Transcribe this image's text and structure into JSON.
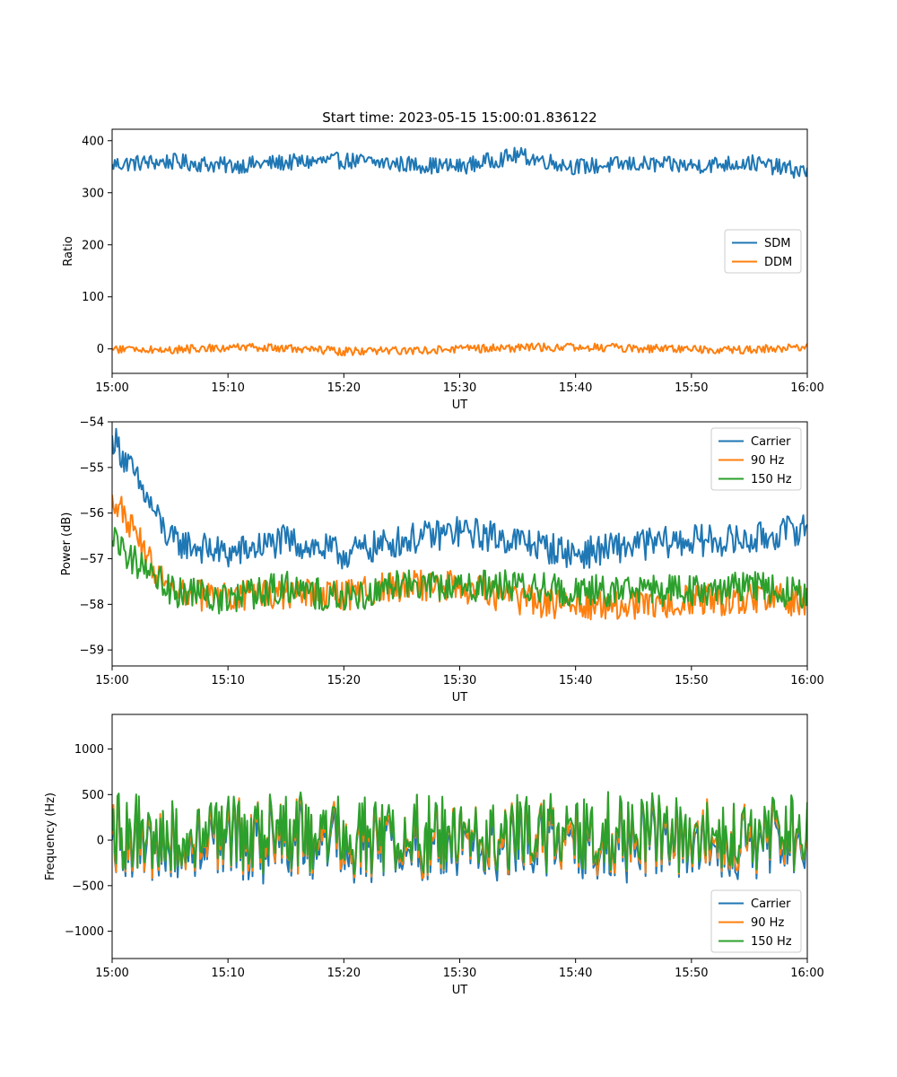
{
  "figure": {
    "title": "Start time: 2023-05-15 15:00:01.836122"
  },
  "chart_data": [
    {
      "type": "line",
      "title": "Start time: 2023-05-15 15:00:01.836122",
      "xlabel": "UT",
      "ylabel": "Ratio",
      "xlim": [
        "15:00",
        "16:00"
      ],
      "ylim": [
        -47,
        422
      ],
      "xticks": [
        "15:00",
        "15:10",
        "15:20",
        "15:30",
        "15:40",
        "15:50",
        "16:00"
      ],
      "yticks": [
        0,
        100,
        200,
        300,
        400
      ],
      "ytick_labels": [
        "0",
        "100",
        "200",
        "300",
        "400"
      ],
      "legend_position": "center-right",
      "grid": false,
      "x": [
        "15:00",
        "15:05",
        "15:10",
        "15:15",
        "15:20",
        "15:25",
        "15:30",
        "15:35",
        "15:40",
        "15:45",
        "15:50",
        "15:55",
        "16:00"
      ],
      "series": [
        {
          "name": "SDM",
          "color": "#1f77b4",
          "values": [
            355,
            360,
            352,
            358,
            362,
            355,
            350,
            372,
            350,
            355,
            352,
            358,
            340
          ],
          "noise": 16
        },
        {
          "name": "DDM",
          "color": "#ff7f0e",
          "values": [
            0,
            -2,
            3,
            1,
            -5,
            -3,
            0,
            2,
            4,
            1,
            0,
            -2,
            5
          ],
          "noise": 8
        }
      ]
    },
    {
      "type": "line",
      "title": "",
      "xlabel": "UT",
      "ylabel": "Power (dB)",
      "xlim": [
        "15:00",
        "16:00"
      ],
      "ylim": [
        -59.35,
        -54
      ],
      "xticks": [
        "15:00",
        "15:10",
        "15:20",
        "15:30",
        "15:40",
        "15:50",
        "16:00"
      ],
      "yticks": [
        -59,
        -58,
        -57,
        -56,
        -55,
        -54
      ],
      "ytick_labels": [
        "−59",
        "−58",
        "−57",
        "−56",
        "−55",
        "−54"
      ],
      "legend_position": "upper-right",
      "grid": false,
      "x": [
        "15:00",
        "15:05",
        "15:10",
        "15:15",
        "15:20",
        "15:25",
        "15:30",
        "15:35",
        "15:40",
        "15:45",
        "15:50",
        "15:55",
        "16:00"
      ],
      "series": [
        {
          "name": "Carrier",
          "color": "#1f77b4",
          "values": [
            -54.3,
            -56.6,
            -56.9,
            -56.6,
            -56.9,
            -56.6,
            -56.4,
            -56.6,
            -56.9,
            -56.7,
            -56.6,
            -56.6,
            -56.3
          ],
          "noise": 0.35
        },
        {
          "name": "90 Hz",
          "color": "#ff7f0e",
          "values": [
            -55.6,
            -57.8,
            -57.8,
            -57.8,
            -57.8,
            -57.6,
            -57.6,
            -57.9,
            -58.0,
            -58.0,
            -57.9,
            -57.9,
            -57.9
          ],
          "noise": 0.35
        },
        {
          "name": "150 Hz",
          "color": "#2ca02c",
          "values": [
            -56.6,
            -57.7,
            -57.9,
            -57.6,
            -57.9,
            -57.5,
            -57.6,
            -57.6,
            -57.7,
            -57.7,
            -57.7,
            -57.6,
            -57.8
          ],
          "noise": 0.35
        }
      ]
    },
    {
      "type": "line",
      "title": "",
      "xlabel": "UT",
      "ylabel": "Frequency (Hz)",
      "xlim": [
        "15:00",
        "16:00"
      ],
      "ylim": [
        -1300,
        1380
      ],
      "xticks": [
        "15:00",
        "15:10",
        "15:20",
        "15:30",
        "15:40",
        "15:50",
        "16:00"
      ],
      "yticks": [
        -1000,
        -500,
        0,
        500,
        1000
      ],
      "ytick_labels": [
        "−1000",
        "−500",
        "0",
        "500",
        "1000"
      ],
      "legend_position": "lower-right",
      "grid": false,
      "x": [
        "15:00",
        "15:05",
        "15:10",
        "15:15",
        "15:20",
        "15:25",
        "15:30",
        "15:35",
        "15:40",
        "15:45",
        "15:50",
        "15:55",
        "16:00"
      ],
      "series": [
        {
          "name": "Carrier",
          "color": "#1f77b4",
          "values": [
            0,
            -20,
            -30,
            -20,
            -40,
            -20,
            -10,
            -20,
            -30,
            -30,
            -20,
            -30,
            -20
          ],
          "noise": 420
        },
        {
          "name": "90 Hz",
          "color": "#ff7f0e",
          "values": [
            60,
            40,
            30,
            40,
            20,
            40,
            50,
            40,
            30,
            30,
            40,
            30,
            40
          ],
          "noise": 420
        },
        {
          "name": "150 Hz",
          "color": "#2ca02c",
          "values": [
            100,
            80,
            70,
            80,
            60,
            80,
            90,
            80,
            70,
            70,
            80,
            70,
            80
          ],
          "noise": 420
        }
      ]
    }
  ]
}
